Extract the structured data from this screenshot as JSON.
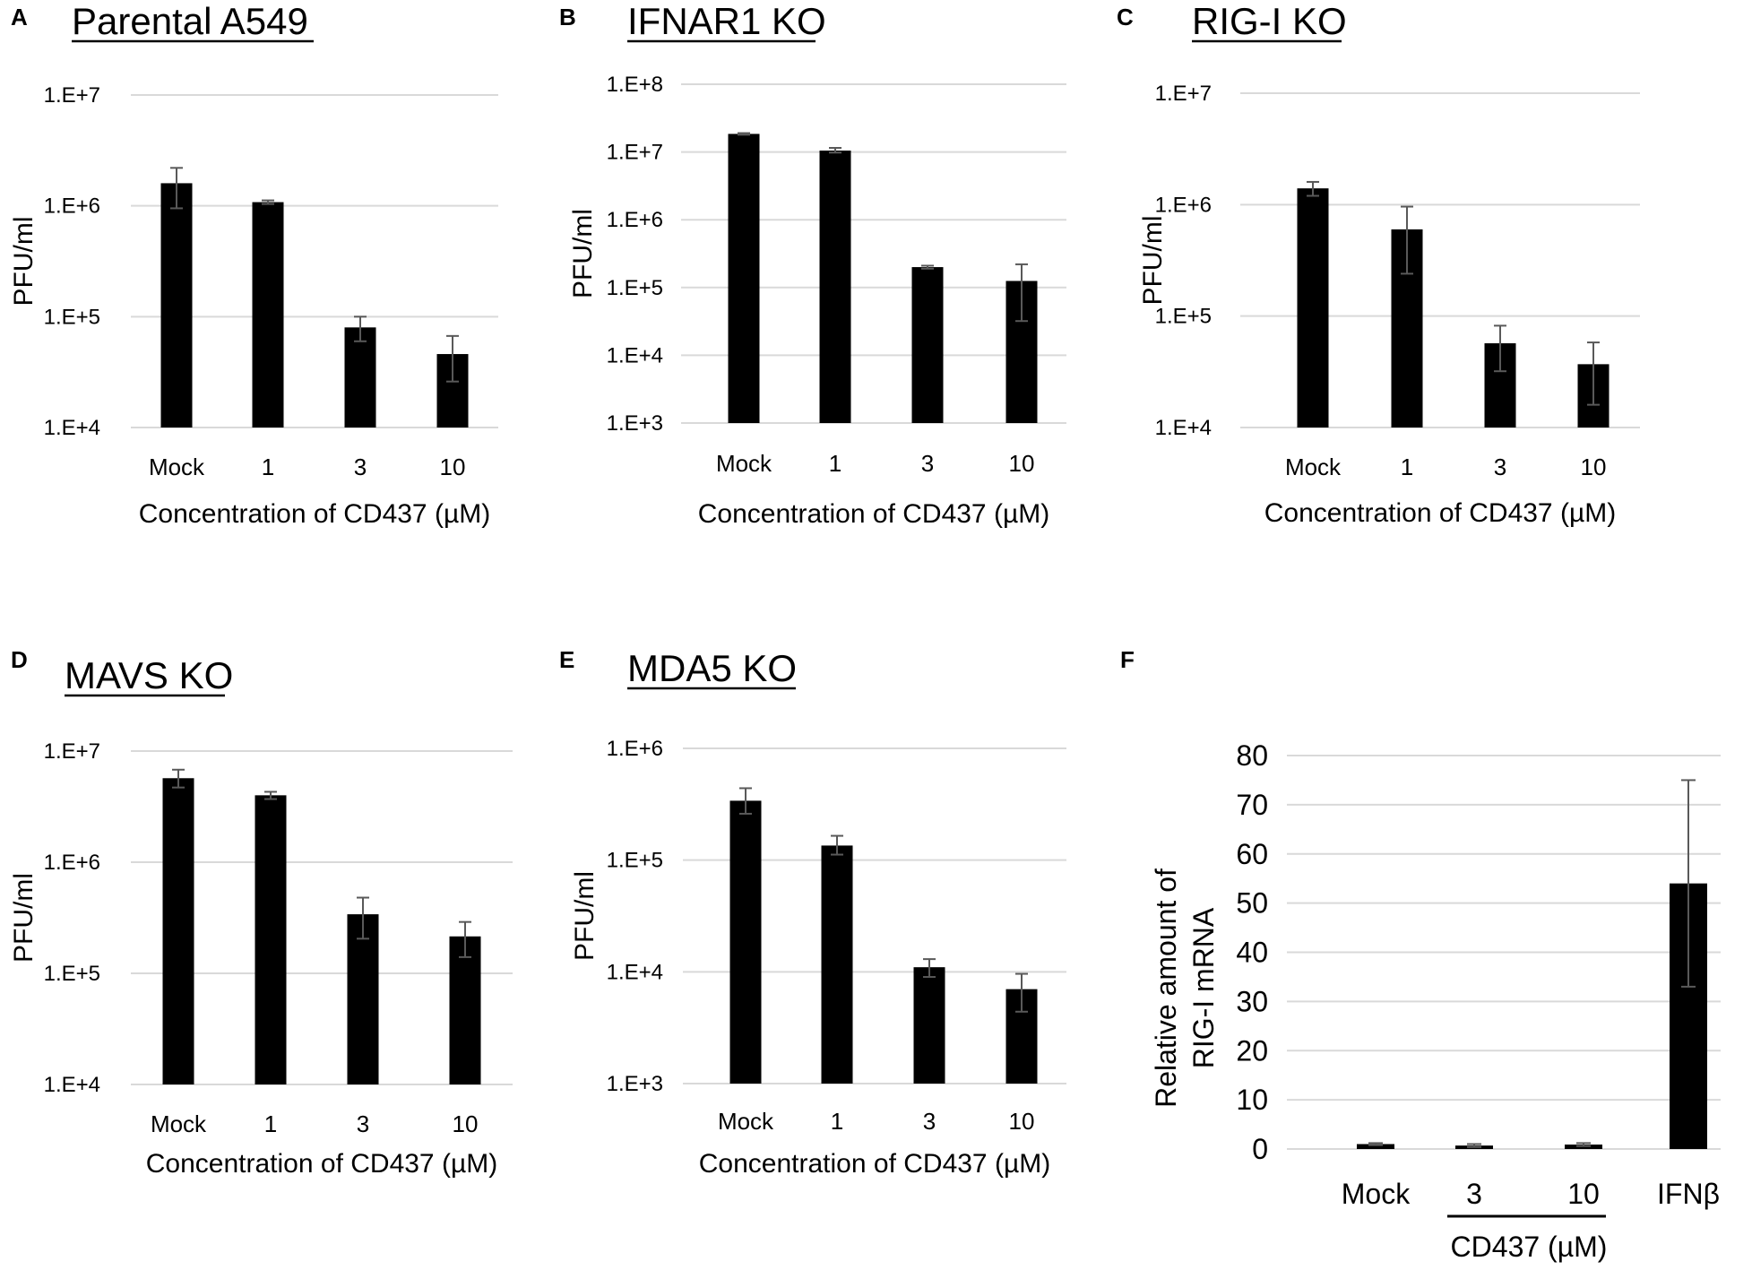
{
  "colors": {
    "bar": "#000000",
    "grid": "#d9d9d9",
    "error": "#595959",
    "text": "#000000"
  },
  "chart_data": [
    {
      "id": "A",
      "letter": "A",
      "title": "Parental A549",
      "type": "bar",
      "yscale": "log",
      "categories": [
        "Mock",
        "1",
        "3",
        "10"
      ],
      "values": [
        1600000,
        1080000,
        80000,
        46000
      ],
      "err_high": [
        2200000,
        1120000,
        100000,
        67000
      ],
      "err_low": [
        950000,
        1040000,
        60000,
        26000
      ],
      "yticks": [
        "1.E+4",
        "1.E+5",
        "1.E+6",
        "1.E+7"
      ],
      "ylim_exp": [
        4,
        7
      ],
      "ylabel": "PFU/ml",
      "xlabel": "Concentration of CD437 (µM)"
    },
    {
      "id": "B",
      "letter": "B",
      "title": "IFNAR1 KO",
      "type": "bar",
      "yscale": "log",
      "categories": [
        "Mock",
        "1",
        "3",
        "10"
      ],
      "values": [
        18500000,
        10500000,
        200000,
        125000
      ],
      "err_high": [
        19000000,
        11500000,
        210000,
        220000
      ],
      "err_low": [
        18000000,
        9800000,
        190000,
        32000
      ],
      "yticks": [
        "1.E+3",
        "1.E+4",
        "1.E+5",
        "1.E+6",
        "1.E+7",
        "1.E+8"
      ],
      "ylim_exp": [
        3,
        8
      ],
      "ylabel": "PFU/ml",
      "xlabel": "Concentration of CD437 (µM)"
    },
    {
      "id": "C",
      "letter": "C",
      "title": "RIG-I KO",
      "type": "bar",
      "yscale": "log",
      "categories": [
        "Mock",
        "1",
        "3",
        "10"
      ],
      "values": [
        1400000,
        600000,
        57000,
        37000
      ],
      "err_high": [
        1600000,
        960000,
        82000,
        58000
      ],
      "err_low": [
        1200000,
        240000,
        32000,
        16000
      ],
      "yticks": [
        "1.E+4",
        "1.E+5",
        "1.E+6",
        "1.E+7"
      ],
      "ylim_exp": [
        4,
        7
      ],
      "ylabel": "PFU/ml",
      "xlabel": "Concentration of CD437 (µM)"
    },
    {
      "id": "D",
      "letter": "D",
      "title": "MAVS KO",
      "type": "bar",
      "yscale": "log",
      "categories": [
        "Mock",
        "1",
        "3",
        "10"
      ],
      "values": [
        5700000,
        4000000,
        340000,
        215000
      ],
      "err_high": [
        6800000,
        4300000,
        480000,
        290000
      ],
      "err_low": [
        4700000,
        3700000,
        205000,
        140000
      ],
      "yticks": [
        "1.E+4",
        "1.E+5",
        "1.E+6",
        "1.E+7"
      ],
      "ylim_exp": [
        4,
        7
      ],
      "ylabel": "PFU/ml",
      "xlabel": "Concentration of CD437 (µM)"
    },
    {
      "id": "E",
      "letter": "E",
      "title": "MDA5 KO",
      "type": "bar",
      "yscale": "log",
      "categories": [
        "Mock",
        "1",
        "3",
        "10"
      ],
      "values": [
        340000,
        135000,
        11000,
        7000
      ],
      "err_high": [
        440000,
        165000,
        13000,
        9600
      ],
      "err_low": [
        260000,
        112000,
        9000,
        4400
      ],
      "yticks": [
        "1.E+3",
        "1.E+4",
        "1.E+5",
        "1.E+6"
      ],
      "ylim_exp": [
        3,
        6
      ],
      "ylabel": "PFU/ml",
      "xlabel": "Concentration of CD437 (µM)"
    },
    {
      "id": "F",
      "letter": "F",
      "title": "",
      "type": "bar",
      "yscale": "linear",
      "categories": [
        "Mock",
        "3",
        "10",
        "IFNβ"
      ],
      "values": [
        1,
        0.7,
        0.9,
        54
      ],
      "err_high": [
        1.2,
        1.0,
        1.2,
        75
      ],
      "err_low": [
        0.8,
        0.4,
        0.6,
        33
      ],
      "yticks": [
        "0",
        "10",
        "20",
        "30",
        "40",
        "50",
        "60",
        "70",
        "80"
      ],
      "ylim": [
        0,
        80
      ],
      "ylabel_lines": [
        "Relative amount of",
        "RIG-I  mRNA"
      ],
      "xlabel": "CD437 (µM)"
    }
  ]
}
